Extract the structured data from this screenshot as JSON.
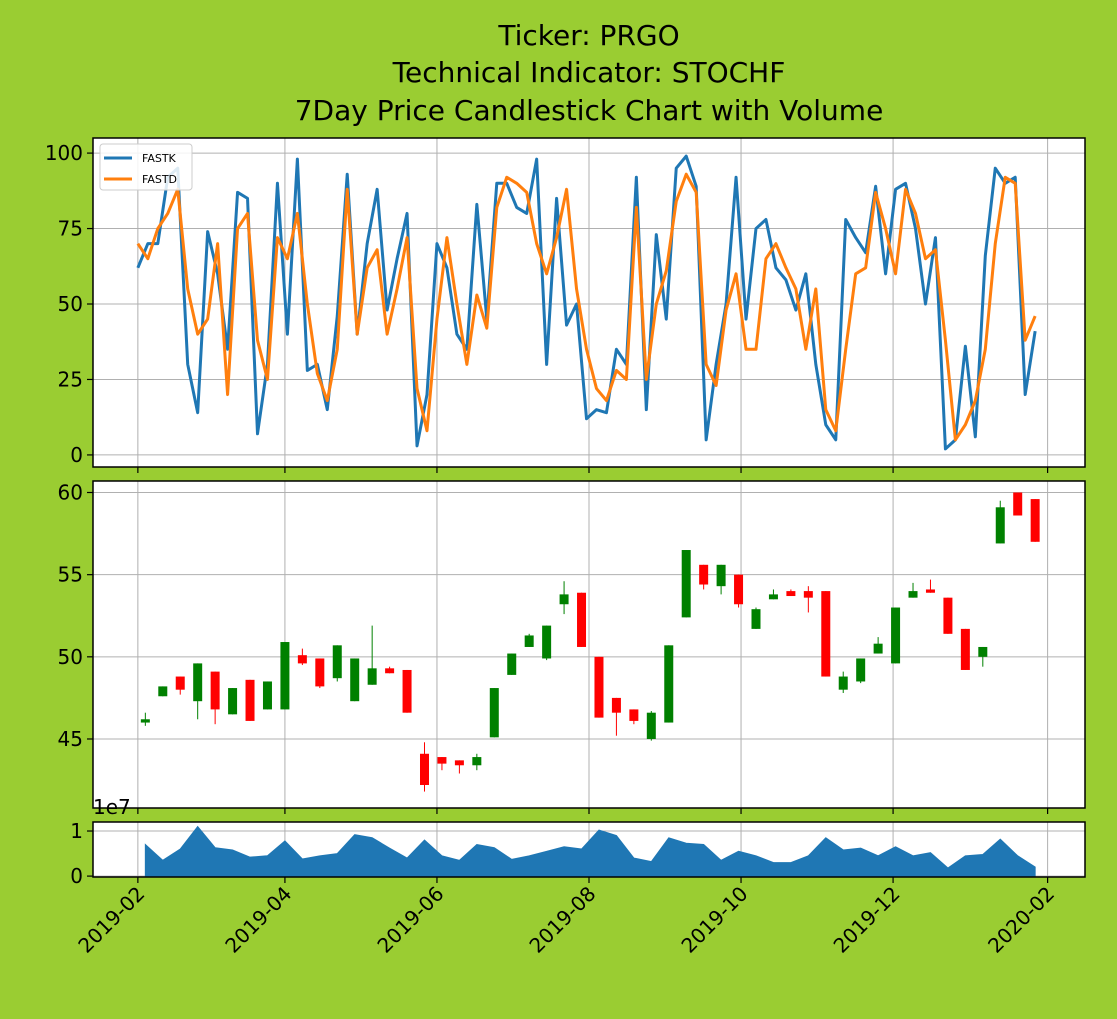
{
  "figure": {
    "title": [
      "Ticker: PRGO",
      "Technical Indicator: STOCHF",
      "7Day Price Candlestick Chart with Volume"
    ]
  },
  "chart_data": [
    {
      "type": "line",
      "x": [
        "2019-02-01",
        "2019-02-05",
        "2019-02-09",
        "2019-02-13",
        "2019-02-17",
        "2019-02-21",
        "2019-02-25",
        "2019-03-01",
        "2019-03-05",
        "2019-03-09",
        "2019-03-13",
        "2019-03-17",
        "2019-03-21",
        "2019-03-25",
        "2019-03-29",
        "2019-04-02",
        "2019-04-06",
        "2019-04-10",
        "2019-04-14",
        "2019-04-18",
        "2019-04-22",
        "2019-04-26",
        "2019-04-30",
        "2019-05-04",
        "2019-05-08",
        "2019-05-12",
        "2019-05-16",
        "2019-05-20",
        "2019-05-24",
        "2019-05-28",
        "2019-06-01",
        "2019-06-05",
        "2019-06-09",
        "2019-06-13",
        "2019-06-17",
        "2019-06-21",
        "2019-06-25",
        "2019-06-29",
        "2019-07-03",
        "2019-07-07",
        "2019-07-11",
        "2019-07-15",
        "2019-07-19",
        "2019-07-23",
        "2019-07-27",
        "2019-07-31",
        "2019-08-04",
        "2019-08-08",
        "2019-08-12",
        "2019-08-16",
        "2019-08-20",
        "2019-08-24",
        "2019-08-28",
        "2019-09-01",
        "2019-09-05",
        "2019-09-09",
        "2019-09-13",
        "2019-09-17",
        "2019-09-21",
        "2019-09-25",
        "2019-09-29",
        "2019-10-03",
        "2019-10-07",
        "2019-10-11",
        "2019-10-15",
        "2019-10-19",
        "2019-10-23",
        "2019-10-27",
        "2019-10-31",
        "2019-11-04",
        "2019-11-08",
        "2019-11-12",
        "2019-11-16",
        "2019-11-20",
        "2019-11-24",
        "2019-11-28",
        "2019-12-02",
        "2019-12-06",
        "2019-12-10",
        "2019-12-14",
        "2019-12-18",
        "2019-12-22",
        "2019-12-26",
        "2019-12-30",
        "2020-01-03",
        "2020-01-07",
        "2020-01-11",
        "2020-01-15",
        "2020-01-19",
        "2020-01-23",
        "2020-01-27"
      ],
      "series": [
        {
          "name": "FASTK",
          "color": "#1f77b4",
          "values": [
            62,
            70,
            70,
            92,
            95,
            30,
            14,
            74,
            60,
            35,
            87,
            85,
            7,
            30,
            90,
            40,
            98,
            28,
            30,
            15,
            46,
            93,
            40,
            70,
            88,
            48,
            65,
            80,
            3,
            20,
            70,
            62,
            40,
            35,
            83,
            45,
            90,
            90,
            82,
            80,
            98,
            30,
            85,
            43,
            50,
            12,
            15,
            14,
            35,
            30,
            92,
            15,
            73,
            45,
            95,
            99,
            89,
            5,
            30,
            50,
            92,
            45,
            75,
            78,
            62,
            58,
            48,
            60,
            30,
            10,
            5,
            78,
            72,
            67,
            89,
            60,
            88,
            90,
            75,
            50,
            72,
            2,
            5,
            36,
            6,
            66,
            95,
            90,
            92,
            20,
            41
          ]
        },
        {
          "name": "FASTD",
          "color": "#ff7f0e",
          "values": [
            70,
            65,
            75,
            80,
            88,
            55,
            40,
            45,
            70,
            20,
            75,
            80,
            38,
            25,
            72,
            65,
            80,
            50,
            27,
            18,
            35,
            88,
            40,
            62,
            68,
            40,
            55,
            72,
            22,
            8,
            45,
            72,
            50,
            30,
            53,
            42,
            82,
            92,
            90,
            87,
            70,
            60,
            72,
            88,
            55,
            35,
            22,
            18,
            28,
            25,
            82,
            25,
            50,
            61,
            84,
            93,
            87,
            30,
            23,
            48,
            60,
            35,
            35,
            65,
            70,
            62,
            55,
            35,
            55,
            15,
            8,
            35,
            60,
            62,
            87,
            75,
            60,
            88,
            80,
            65,
            68,
            38,
            5,
            10,
            18,
            35,
            70,
            92,
            90,
            38,
            46
          ]
        }
      ],
      "xlim": [
        "2019-01-14",
        "2020-02-16"
      ],
      "ylim": [
        -4,
        105
      ],
      "yticks": [
        0,
        25,
        50,
        75,
        100
      ],
      "grid": true,
      "legend": "upper left"
    },
    {
      "type": "candlestick",
      "x": [
        "2019-02-04",
        "2019-02-11",
        "2019-02-18",
        "2019-02-25",
        "2019-03-04",
        "2019-03-11",
        "2019-03-18",
        "2019-03-25",
        "2019-04-01",
        "2019-04-08",
        "2019-04-15",
        "2019-04-22",
        "2019-04-29",
        "2019-05-06",
        "2019-05-13",
        "2019-05-20",
        "2019-05-27",
        "2019-06-03",
        "2019-06-10",
        "2019-06-17",
        "2019-06-24",
        "2019-07-01",
        "2019-07-08",
        "2019-07-15",
        "2019-07-22",
        "2019-07-29",
        "2019-08-05",
        "2019-08-12",
        "2019-08-19",
        "2019-08-26",
        "2019-09-02",
        "2019-09-09",
        "2019-09-16",
        "2019-09-23",
        "2019-09-30",
        "2019-10-07",
        "2019-10-14",
        "2019-10-21",
        "2019-10-28",
        "2019-11-04",
        "2019-11-11",
        "2019-11-18",
        "2019-11-25",
        "2019-12-02",
        "2019-12-09",
        "2019-12-16",
        "2019-12-23",
        "2019-12-30",
        "2020-01-06",
        "2020-01-13",
        "2020-01-20",
        "2020-01-27"
      ],
      "open": [
        46.0,
        47.6,
        48.8,
        47.3,
        49.1,
        46.5,
        48.6,
        46.8,
        46.8,
        50.1,
        49.9,
        48.7,
        47.3,
        48.3,
        49.3,
        49.2,
        44.1,
        43.9,
        43.7,
        43.4,
        45.1,
        48.9,
        50.6,
        49.9,
        53.2,
        53.9,
        50.0,
        47.5,
        46.8,
        45.0,
        46.0,
        52.4,
        55.6,
        54.3,
        55.0,
        51.7,
        53.5,
        54.0,
        54.0,
        54.0,
        48.0,
        48.5,
        50.2,
        49.6,
        53.6,
        54.1,
        53.6,
        51.7,
        50.0,
        56.9,
        60.0,
        59.6
      ],
      "high": [
        46.6,
        48.2,
        48.8,
        49.6,
        49.1,
        48.1,
        48.6,
        48.5,
        50.9,
        50.5,
        49.9,
        50.7,
        49.9,
        51.9,
        49.4,
        49.2,
        44.8,
        43.9,
        43.7,
        44.1,
        48.1,
        50.2,
        51.4,
        51.9,
        54.6,
        53.9,
        50.0,
        47.5,
        46.8,
        46.7,
        50.7,
        56.5,
        55.6,
        55.6,
        55.0,
        53.0,
        54.1,
        54.1,
        54.3,
        54.0,
        49.1,
        49.9,
        51.2,
        53.0,
        54.5,
        54.7,
        53.6,
        51.7,
        50.6,
        59.5,
        60.0,
        59.6
      ],
      "low": [
        45.8,
        47.6,
        47.7,
        46.2,
        45.9,
        46.5,
        46.1,
        46.8,
        46.8,
        49.5,
        48.1,
        48.5,
        47.3,
        48.3,
        49.0,
        46.6,
        41.8,
        43.1,
        42.9,
        43.1,
        45.1,
        48.9,
        50.6,
        49.8,
        52.6,
        50.6,
        46.3,
        45.2,
        45.9,
        44.9,
        46.0,
        52.4,
        54.1,
        53.8,
        53.0,
        51.7,
        53.5,
        53.7,
        52.7,
        48.8,
        47.8,
        48.4,
        50.2,
        49.6,
        53.6,
        53.9,
        51.4,
        49.2,
        49.4,
        56.9,
        58.6,
        57.0
      ],
      "close": [
        46.2,
        48.2,
        48.0,
        49.6,
        46.8,
        48.1,
        46.1,
        48.5,
        50.9,
        49.6,
        48.2,
        50.7,
        49.9,
        49.3,
        49.0,
        46.6,
        42.2,
        43.5,
        43.4,
        43.9,
        48.1,
        50.2,
        51.3,
        51.9,
        53.8,
        50.6,
        46.3,
        46.6,
        46.1,
        46.6,
        50.7,
        56.5,
        54.4,
        55.6,
        53.2,
        52.9,
        53.8,
        53.7,
        53.6,
        48.8,
        48.8,
        49.9,
        50.8,
        53.0,
        54.0,
        53.9,
        51.4,
        49.2,
        50.6,
        59.1,
        58.6,
        57.0
      ],
      "up_color": "#008000",
      "down_color": "#ff0000",
      "xlim": [
        "2019-01-14",
        "2020-02-16"
      ],
      "ylim": [
        40.8,
        60.7
      ],
      "yticks": [
        45,
        50,
        55,
        60
      ],
      "grid": true
    },
    {
      "type": "area",
      "x": [
        "2019-02-04",
        "2019-02-11",
        "2019-02-18",
        "2019-02-25",
        "2019-03-04",
        "2019-03-11",
        "2019-03-18",
        "2019-03-25",
        "2019-04-01",
        "2019-04-08",
        "2019-04-15",
        "2019-04-22",
        "2019-04-29",
        "2019-05-06",
        "2019-05-13",
        "2019-05-20",
        "2019-05-27",
        "2019-06-03",
        "2019-06-10",
        "2019-06-17",
        "2019-06-24",
        "2019-07-01",
        "2019-07-08",
        "2019-07-15",
        "2019-07-22",
        "2019-07-29",
        "2019-08-05",
        "2019-08-12",
        "2019-08-19",
        "2019-08-26",
        "2019-09-02",
        "2019-09-09",
        "2019-09-16",
        "2019-09-23",
        "2019-09-30",
        "2019-10-07",
        "2019-10-14",
        "2019-10-21",
        "2019-10-28",
        "2019-11-04",
        "2019-11-11",
        "2019-11-18",
        "2019-11-25",
        "2019-12-02",
        "2019-12-09",
        "2019-12-16",
        "2019-12-23",
        "2019-12-30",
        "2020-01-06",
        "2020-01-13",
        "2020-01-20",
        "2020-01-27"
      ],
      "values": [
        7000000,
        3500000,
        6000000,
        11000000,
        6300000,
        5800000,
        4200000,
        4500000,
        7800000,
        3800000,
        4500000,
        5000000,
        9200000,
        8500000,
        6200000,
        4000000,
        8000000,
        4500000,
        3500000,
        7000000,
        6300000,
        3700000,
        4500000,
        5500000,
        6500000,
        6000000,
        10200000,
        9000000,
        4000000,
        3200000,
        8500000,
        7300000,
        7000000,
        3500000,
        5500000,
        4500000,
        3000000,
        3000000,
        4500000,
        8500000,
        5800000,
        6200000,
        4500000,
        6500000,
        4500000,
        5200000,
        1800000,
        4500000,
        4800000,
        8200000,
        4500000,
        2000000
      ],
      "color": "#1f77b4",
      "xlim": [
        "2019-01-14",
        "2020-02-16"
      ],
      "ylim": [
        -200000,
        12000000
      ],
      "yticks": [
        0,
        {
          "value": 10000000,
          "label": "1"
        }
      ],
      "offset_label": "1e7",
      "xticks": [
        "2019-02",
        "2019-04",
        "2019-06",
        "2019-08",
        "2019-10",
        "2019-12",
        "2020-02"
      ],
      "grid": true
    }
  ]
}
